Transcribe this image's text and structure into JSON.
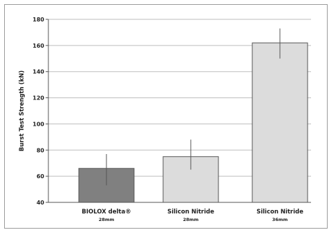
{
  "chart_data": {
    "type": "bar",
    "ylabel": "Burst Test Strength (kN)",
    "xlabel": "",
    "ylim": [
      40,
      180
    ],
    "yticks": [
      40,
      60,
      80,
      100,
      120,
      140,
      160,
      180
    ],
    "grid": true,
    "categories": [
      {
        "name": "BIOLOX delta®",
        "sub": "28mm"
      },
      {
        "name": "Silicon Nitride",
        "sub": "28mm"
      },
      {
        "name": "Silicon Nitride",
        "sub": "36mm"
      }
    ],
    "values": [
      66,
      75,
      162
    ],
    "error_low": [
      53,
      65,
      150
    ],
    "error_high": [
      77,
      88,
      173
    ],
    "colors": {
      "bar_fill": [
        "#808080",
        "#dcdcdc",
        "#dcdcdc"
      ],
      "bar_stroke": "#555555",
      "grid": "#bdbdbd",
      "axis": "#555555",
      "error_bar": "#555555"
    }
  }
}
